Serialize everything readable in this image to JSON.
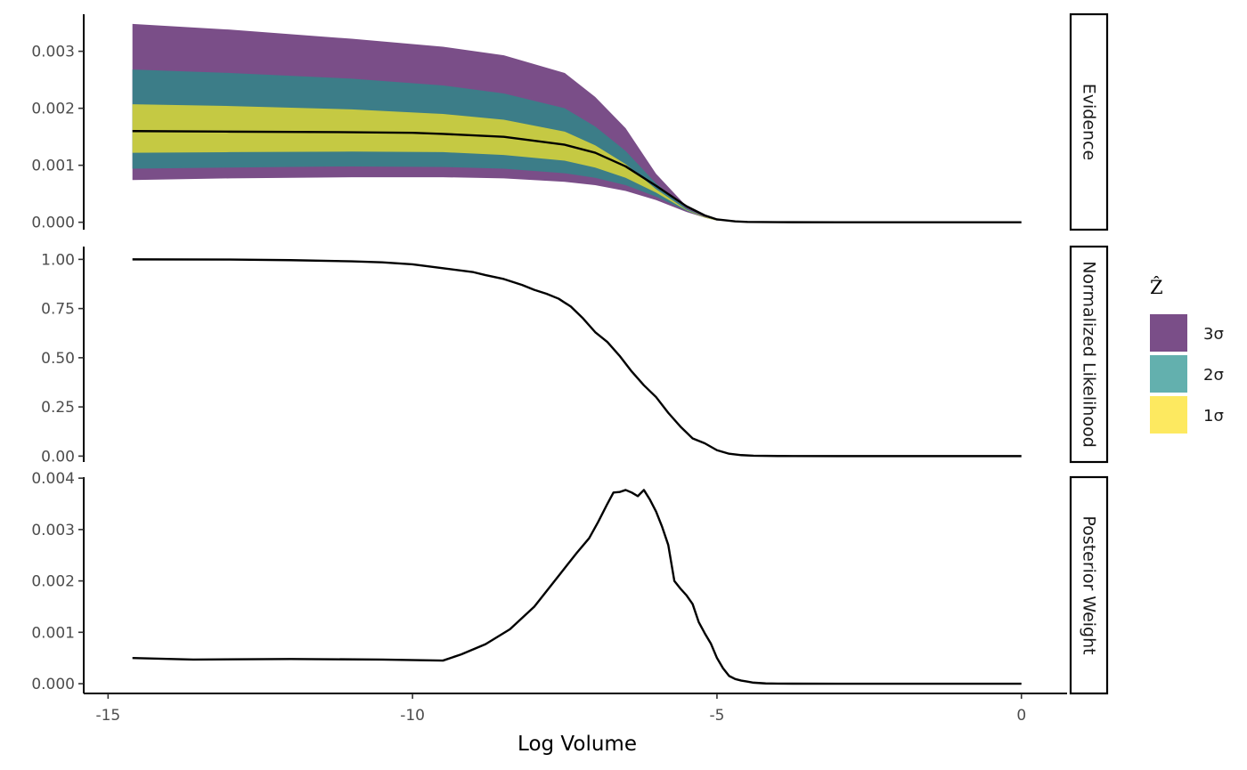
{
  "chart_data": {
    "type": "line",
    "xlabel": "Log Volume",
    "x_ticks": [
      "-15",
      "-10",
      "-5",
      "0"
    ],
    "x_tick_values": [
      -15,
      -10,
      -5,
      0
    ],
    "xlim": [
      -15.4,
      0.75
    ],
    "legend": {
      "title": "Ẑ",
      "position": "right",
      "entries": [
        {
          "label": "3σ",
          "color": "#7a4e88"
        },
        {
          "label": "2σ",
          "color": "#63b0ae"
        },
        {
          "label": "1σ",
          "color": "#fde960"
        }
      ]
    },
    "panels": [
      {
        "strip": "Evidence",
        "ylim": [
          -0.00013,
          0.00365
        ],
        "y_ticks": [
          "0.000",
          "0.001",
          "0.002",
          "0.003"
        ],
        "y_tick_values": [
          0,
          0.001,
          0.002,
          0.003
        ],
        "bands": [
          {
            "label": "3σ",
            "fill": "#7a4e88",
            "x": [
              -14.6,
              -13,
              -11,
              -9.5,
              -8.5,
              -7.5,
              -7,
              -6.5,
              -6,
              -5.5,
              -5.2,
              -5,
              -4.5,
              -4,
              -3,
              -2,
              0
            ],
            "upper": [
              0.00348,
              0.00338,
              0.00322,
              0.00308,
              0.00293,
              0.00262,
              0.0022,
              0.00165,
              0.00085,
              0.00028,
              0.0001,
              4e-05,
              6e-06,
              1e-06,
              1e-06,
              1e-06,
              1e-06
            ],
            "lower": [
              0.00074,
              0.00077,
              0.00079,
              0.00079,
              0.00077,
              0.00071,
              0.00065,
              0.00055,
              0.00039,
              0.00018,
              8e-05,
              3e-05,
              5e-06,
              1e-06,
              1e-06,
              1e-06,
              1e-06
            ]
          },
          {
            "label": "2σ",
            "fill": "#3c7d88",
            "x": [
              -14.6,
              -13,
              -11,
              -9.5,
              -8.5,
              -7.5,
              -7,
              -6.5,
              -6,
              -5.5,
              -5.2,
              -5
            ],
            "upper": [
              0.00268,
              0.00262,
              0.00252,
              0.0024,
              0.00226,
              0.002,
              0.00168,
              0.00125,
              0.00068,
              0.00024,
              9e-05,
              4e-05
            ],
            "lower": [
              0.00094,
              0.00096,
              0.00098,
              0.00097,
              0.00094,
              0.00086,
              0.00078,
              0.00065,
              0.00045,
              0.0002,
              8e-05,
              3e-05
            ]
          },
          {
            "label": "1σ",
            "fill": "#c5c943",
            "x": [
              -14.6,
              -13,
              -11,
              -9.5,
              -8.5,
              -7.5,
              -7,
              -6.5,
              -6,
              -5.5,
              -5.2,
              -5
            ],
            "upper": [
              0.00207,
              0.00204,
              0.00198,
              0.0019,
              0.0018,
              0.00159,
              0.00135,
              0.00102,
              0.00058,
              0.00022,
              9e-05,
              4e-05
            ],
            "lower": [
              0.00122,
              0.00123,
              0.00124,
              0.00123,
              0.00118,
              0.00108,
              0.00096,
              0.00078,
              0.00052,
              0.00021,
              8e-05,
              3e-05
            ]
          }
        ],
        "line": {
          "x": [
            -14.6,
            -13,
            -11,
            -10,
            -9.5,
            -8.5,
            -7.5,
            -7,
            -6.5,
            -6,
            -5.5,
            -5.2,
            -5,
            -4.7,
            -4.5,
            -4,
            -3,
            -2,
            -1,
            0
          ],
          "y": [
            0.0016,
            0.00159,
            0.00158,
            0.00157,
            0.00155,
            0.0015,
            0.00136,
            0.00122,
            0.00098,
            0.00064,
            0.00028,
            0.00012,
            5e-05,
            1.5e-05,
            5e-06,
            1e-06,
            0,
            0,
            0,
            0
          ]
        }
      },
      {
        "strip": "Normalized Likelihood",
        "ylim": [
          -0.03,
          1.065
        ],
        "y_ticks": [
          "0.00",
          "0.25",
          "0.50",
          "0.75",
          "1.00"
        ],
        "y_tick_values": [
          0,
          0.25,
          0.5,
          0.75,
          1
        ],
        "line": {
          "x": [
            -14.6,
            -13,
            -12,
            -11,
            -10.5,
            -10,
            -9.5,
            -9,
            -8.8,
            -8.5,
            -8.2,
            -8,
            -7.8,
            -7.6,
            -7.4,
            -7.2,
            -7,
            -6.8,
            -6.6,
            -6.4,
            -6.2,
            -6,
            -5.8,
            -5.6,
            -5.4,
            -5.2,
            -5,
            -4.8,
            -4.6,
            -4.4,
            -4,
            -3,
            -2,
            -1,
            0
          ],
          "y": [
            1.0,
            0.999,
            0.996,
            0.99,
            0.985,
            0.975,
            0.955,
            0.935,
            0.92,
            0.9,
            0.87,
            0.845,
            0.825,
            0.8,
            0.76,
            0.7,
            0.63,
            0.58,
            0.51,
            0.43,
            0.36,
            0.3,
            0.22,
            0.15,
            0.09,
            0.065,
            0.03,
            0.012,
            0.005,
            0.002,
            0.0005,
            0,
            0,
            0,
            0
          ]
        }
      },
      {
        "strip": "Posterior Weight",
        "ylim": [
          -0.00019,
          0.00402
        ],
        "y_ticks": [
          "0.000",
          "0.001",
          "0.002",
          "0.003",
          "0.004"
        ],
        "y_tick_values": [
          0,
          0.001,
          0.002,
          0.003,
          0.004
        ],
        "line": {
          "x": [
            -14.6,
            -13.6,
            -12,
            -10.5,
            -9.5,
            -9.2,
            -8.8,
            -8.4,
            -8.0,
            -7.6,
            -7.3,
            -7.1,
            -6.95,
            -6.8,
            -6.7,
            -6.6,
            -6.5,
            -6.4,
            -6.3,
            -6.2,
            -6.1,
            -6.0,
            -5.9,
            -5.8,
            -5.7,
            -5.6,
            -5.5,
            -5.4,
            -5.3,
            -5.2,
            -5.1,
            -5.0,
            -4.9,
            -4.8,
            -4.7,
            -4.6,
            -4.5,
            -4.4,
            -4.2,
            -4.0,
            -3,
            -2,
            -1,
            0
          ],
          "y": [
            0.0005,
            0.00047,
            0.00048,
            0.00047,
            0.00045,
            0.00057,
            0.00077,
            0.00106,
            0.0015,
            0.0021,
            0.00255,
            0.00283,
            0.00315,
            0.0035,
            0.00372,
            0.00373,
            0.00377,
            0.00372,
            0.00365,
            0.00377,
            0.00358,
            0.00335,
            0.00305,
            0.0027,
            0.002,
            0.00185,
            0.00172,
            0.00155,
            0.0012,
            0.00098,
            0.00078,
            0.0005,
            0.0003,
            0.00015,
            9e-05,
            6e-05,
            4e-05,
            2e-05,
            5e-06,
            1e-06,
            0,
            0,
            0,
            0
          ]
        }
      }
    ]
  }
}
